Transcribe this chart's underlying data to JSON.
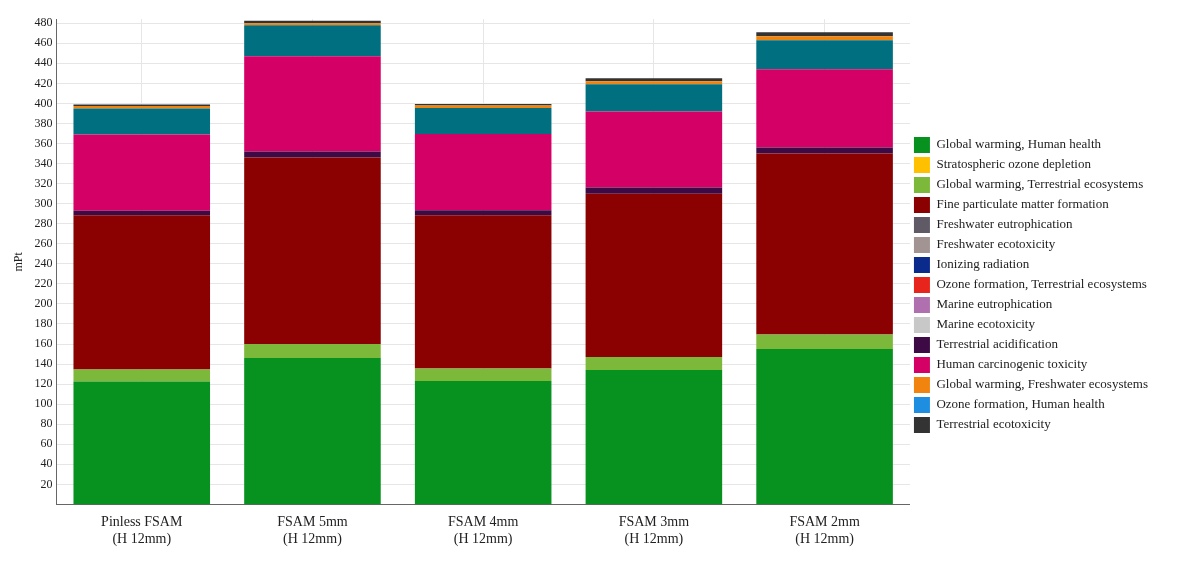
{
  "chart_data": {
    "type": "bar",
    "stacked": true,
    "ylabel": "mPt",
    "categories": [
      "Pinless FSAM\n(H 12mm)",
      "FSAM 5mm\n(H 12mm)",
      "FSAM 4mm\n(H 12mm)",
      "FSAM 3mm\n(H 12mm)",
      "FSAM 2mm\n(H 12mm)"
    ],
    "series": [
      {
        "name": "Global warming, Human health",
        "color": "#07921f",
        "values": [
          122.5,
          146,
          123,
          134,
          155
        ]
      },
      {
        "name": "Stratospheric ozone depletion",
        "color": "#ffc000",
        "values": [
          0,
          0,
          0,
          0,
          0
        ]
      },
      {
        "name": "Global warming, Terrestrial ecosystems",
        "color": "#7cb83a",
        "values": [
          12,
          14,
          12.5,
          13,
          14.5
        ]
      },
      {
        "name": "Fine particulate matter formation",
        "color": "#8b0000",
        "values": [
          154,
          186,
          153,
          163,
          180.5
        ]
      },
      {
        "name": "Freshwater eutrophication",
        "color": "#5f5a66",
        "values": [
          0,
          0,
          0,
          0,
          0
        ]
      },
      {
        "name": "Freshwater ecotoxicity",
        "color": "#a39494",
        "values": [
          0,
          0,
          0,
          0,
          0
        ]
      },
      {
        "name": "Ionizing radiation",
        "color": "#0a2a8c",
        "values": [
          0,
          0,
          0,
          0,
          0
        ]
      },
      {
        "name": "Ozone formation, Terrestrial ecosystems",
        "color": "#e8251c",
        "values": [
          0,
          0,
          0,
          0,
          0
        ]
      },
      {
        "name": "Marine eutrophication",
        "color": "#b070b0",
        "values": [
          0,
          0,
          0,
          0,
          0
        ]
      },
      {
        "name": "Marine ecotoxicity",
        "color": "#c8c8c8",
        "values": [
          0,
          0,
          0,
          0,
          0
        ]
      },
      {
        "name": "Terrestrial acidification",
        "color": "#3d0a45",
        "values": [
          4.5,
          6,
          5,
          6,
          6
        ]
      },
      {
        "name": "Human carcinogenic toxicity",
        "color": "#d40066",
        "values": [
          76,
          95,
          76,
          76,
          78
        ]
      },
      {
        "color": "#006f80",
        "values": [
          26,
          31,
          26,
          27,
          29
        ]
      },
      {
        "name": "Global warming, Freshwater ecosystems",
        "color": "#f0840f",
        "values": [
          2.5,
          2,
          2.5,
          3,
          4
        ]
      },
      {
        "name": "Ozone formation, Human health",
        "color": "#1e8fe0",
        "values": [
          0,
          0,
          0,
          0,
          0
        ]
      },
      {
        "name": "Terrestrial ecotoxicity",
        "color": "#333333",
        "values": [
          1.5,
          2.5,
          1.5,
          3,
          4
        ]
      }
    ],
    "ylim": [
      0,
      484
    ],
    "yticks": [
      20,
      40,
      60,
      80,
      100,
      120,
      140,
      160,
      180,
      200,
      220,
      240,
      260,
      280,
      300,
      320,
      340,
      360,
      380,
      400,
      420,
      440,
      460,
      480
    ],
    "grid": true,
    "legend": "right"
  }
}
